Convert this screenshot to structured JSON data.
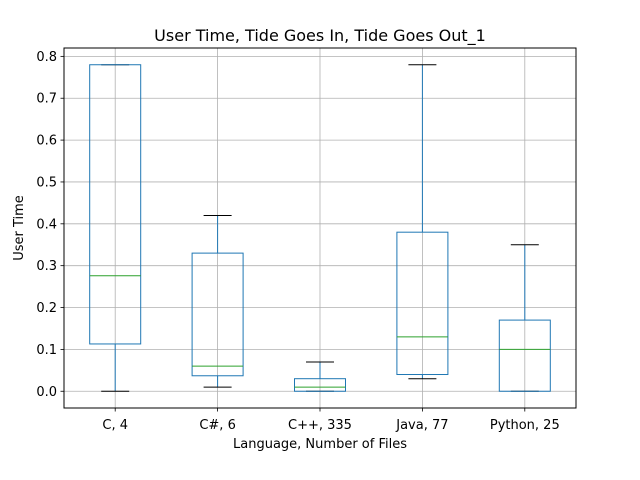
{
  "chart_data": {
    "type": "box",
    "title": "User Time, Tide Goes In, Tide Goes Out_1",
    "xlabel": "Language, Number of Files",
    "ylabel": "User Time",
    "ylim": [
      -0.04,
      0.82
    ],
    "yticks": [
      "0.0",
      "0.1",
      "0.2",
      "0.3",
      "0.4",
      "0.5",
      "0.6",
      "0.7",
      "0.8"
    ],
    "grid": true,
    "categories": [
      "C, 4",
      "C#, 6",
      "C++, 335",
      "Java, 77",
      "Python, 25"
    ],
    "boxes": [
      {
        "whisker_low": 0.0,
        "q1": 0.113,
        "median": 0.276,
        "q3": 0.78,
        "whisker_high": 0.78
      },
      {
        "whisker_low": 0.01,
        "q1": 0.037,
        "median": 0.06,
        "q3": 0.33,
        "whisker_high": 0.42
      },
      {
        "whisker_low": 0.0,
        "q1": 0.0,
        "median": 0.01,
        "q3": 0.03,
        "whisker_high": 0.07
      },
      {
        "whisker_low": 0.03,
        "q1": 0.04,
        "median": 0.13,
        "q3": 0.38,
        "whisker_high": 0.78
      },
      {
        "whisker_low": 0.0,
        "q1": 0.0,
        "median": 0.1,
        "q3": 0.17,
        "whisker_high": 0.35
      }
    ],
    "colors": {
      "box": "#1f77b4",
      "median": "#2ca02c",
      "whisker_cap": "#000000",
      "grid": "#b0b0b0"
    }
  }
}
